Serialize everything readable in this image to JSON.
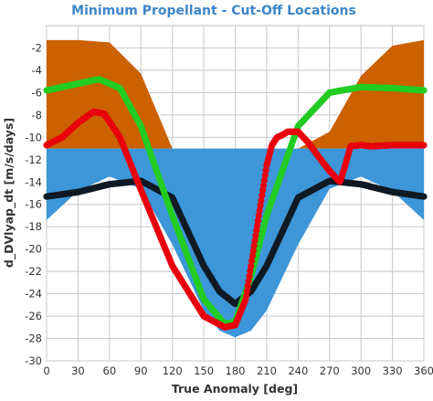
{
  "chart_data": {
    "type": "line",
    "title": "Minimum Propellant - Cut-Off Locations",
    "xlabel": "True Anomaly [deg]",
    "ylabel": "d_DVlyap_dt [m/s/days]",
    "xlim": [
      0,
      360
    ],
    "ylim": [
      -30,
      0
    ],
    "xticks": [
      0,
      30,
      60,
      90,
      120,
      150,
      180,
      210,
      240,
      270,
      300,
      330,
      360
    ],
    "yticks": [
      -2,
      -4,
      -6,
      -8,
      -10,
      -12,
      -14,
      -16,
      -18,
      -20,
      -22,
      -24,
      -26,
      -28,
      -30
    ],
    "grid": true,
    "legend": "none",
    "colors": {
      "orange_band": "#cc6100",
      "blue_band": "#3c96d8",
      "black": "#111a24",
      "green": "#22cc22",
      "red": "#e8000c"
    },
    "bands": [
      {
        "color": "orange_band",
        "x": [
          0,
          30,
          60,
          90,
          120,
          150,
          180,
          210,
          240,
          270,
          300,
          330,
          360
        ],
        "y_upper": [
          -1.3,
          -1.3,
          -1.5,
          -4.3,
          -11,
          -11,
          -11,
          -11,
          -11,
          -9.5,
          -4.5,
          -1.8,
          -1.3
        ],
        "y_lower": [
          -11,
          -11,
          -11,
          -11,
          -11,
          -11,
          -11,
          -11,
          -11,
          -11,
          -11,
          -11,
          -11
        ]
      },
      {
        "color": "blue_band",
        "x": [
          0,
          30,
          60,
          90,
          120,
          150,
          165,
          180,
          195,
          210,
          240,
          270,
          300,
          330,
          360
        ],
        "y_upper": [
          -11,
          -11,
          -11,
          -11,
          -11,
          -11,
          -11,
          -11,
          -11,
          -11,
          -11,
          -11,
          -11,
          -11,
          -11
        ],
        "y_lower": [
          -17.4,
          -14.8,
          -13.5,
          -14.6,
          -19.6,
          -25.5,
          -27.3,
          -27.9,
          -27.3,
          -25.5,
          -19.6,
          -14.6,
          -13.5,
          -14.8,
          -17.4
        ]
      }
    ],
    "series": [
      {
        "color": "black",
        "x": [
          0,
          30,
          60,
          90,
          120,
          150,
          165,
          180,
          195,
          210,
          240,
          270,
          300,
          330,
          360
        ],
        "y": [
          -15.3,
          -14.9,
          -14.2,
          -13.9,
          -15.4,
          -21.5,
          -23.8,
          -24.9,
          -23.8,
          -21.5,
          -15.4,
          -13.9,
          -14.2,
          -14.9,
          -15.3
        ]
      },
      {
        "color": "green",
        "x": [
          0,
          30,
          50,
          70,
          90,
          120,
          150,
          170,
          180,
          195,
          210,
          240,
          270,
          300,
          330,
          360
        ],
        "y": [
          -5.8,
          -5.2,
          -4.8,
          -5.6,
          -9.0,
          -17.0,
          -24.5,
          -26.7,
          -26.5,
          -22.5,
          -17.0,
          -9.0,
          -6.0,
          -5.5,
          -5.6,
          -5.8
        ]
      },
      {
        "color": "red",
        "x": [
          0,
          15,
          30,
          45,
          55,
          70,
          90,
          120,
          150,
          170,
          180,
          190,
          200,
          210,
          215,
          220,
          225,
          230,
          240,
          250,
          260,
          270,
          280,
          285,
          290,
          300,
          310,
          330,
          360
        ],
        "y": [
          -10.7,
          -10.0,
          -8.7,
          -7.7,
          -7.9,
          -10.0,
          -14.7,
          -21.5,
          -26.0,
          -27.0,
          -26.8,
          -24.5,
          -18.5,
          -12.5,
          -10.7,
          -10.0,
          -9.8,
          -9.5,
          -9.5,
          -10.5,
          -11.8,
          -13.0,
          -14.0,
          -12.5,
          -10.8,
          -10.7,
          -10.8,
          -10.7,
          -10.7
        ]
      }
    ]
  }
}
